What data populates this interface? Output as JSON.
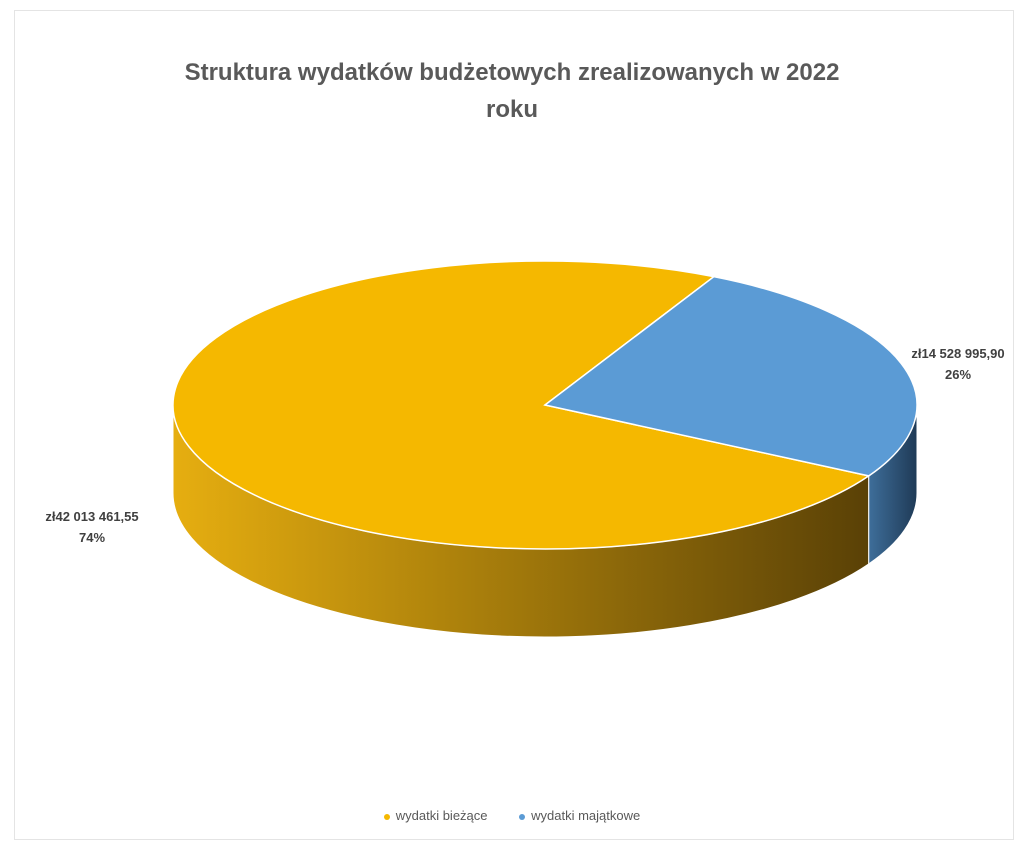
{
  "chart_data": {
    "type": "pie",
    "title_lines": [
      "Struktura wydatków budżetowych zrealizowanych w 2022",
      "roku"
    ],
    "legend_position": "bottom",
    "currency_prefix": "zł",
    "slices": [
      {
        "name": "wydatki bieżące",
        "value": 42013461.55,
        "value_label": "zł42 013 461,55",
        "percent": 74,
        "percent_label": "74%",
        "color": "#F5B800",
        "side_color_light": "#E6AE10",
        "side_color_dark": "#5A4106"
      },
      {
        "name": "wydatki majątkowe",
        "value": 14528995.9,
        "value_label": "zł14 528 995,90",
        "percent": 26,
        "percent_label": "26%",
        "color": "#5B9BD5",
        "side_color_light": "#3E6E9A",
        "side_color_dark": "#1F3A56"
      }
    ]
  }
}
